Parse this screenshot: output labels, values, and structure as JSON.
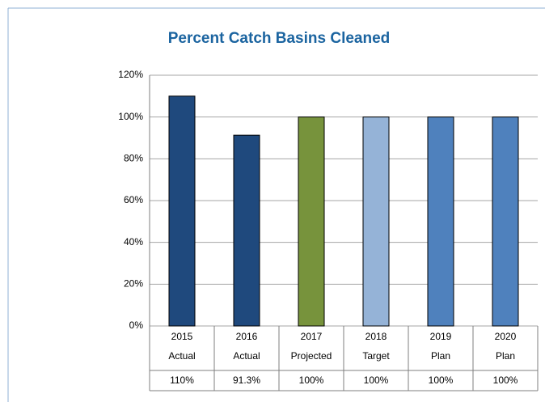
{
  "chart_data": {
    "type": "bar",
    "title": "Percent Catch Basins Cleaned",
    "categories": [
      [
        "2015",
        "Actual"
      ],
      [
        "2016",
        "Actual"
      ],
      [
        "2017",
        "Projected"
      ],
      [
        "2018",
        "Target"
      ],
      [
        "2019",
        "Plan"
      ],
      [
        "2020",
        "Plan"
      ]
    ],
    "values": [
      110,
      91.3,
      100,
      100,
      100,
      100
    ],
    "value_labels": [
      "110%",
      "91.3%",
      "100%",
      "100%",
      "100%",
      "100%"
    ],
    "colors": [
      "#1f497d",
      "#1f497d",
      "#77933c",
      "#95b3d7",
      "#4f81bd",
      "#4f81bd"
    ],
    "ylim": [
      0,
      120
    ],
    "yticks": [
      {
        "value": 0,
        "label": "0%"
      },
      {
        "value": 20,
        "label": "20%"
      },
      {
        "value": 40,
        "label": "40%"
      },
      {
        "value": 60,
        "label": "60%"
      },
      {
        "value": 80,
        "label": "80%"
      },
      {
        "value": 100,
        "label": "100%"
      },
      {
        "value": 120,
        "label": "120%"
      }
    ],
    "grid": true
  }
}
